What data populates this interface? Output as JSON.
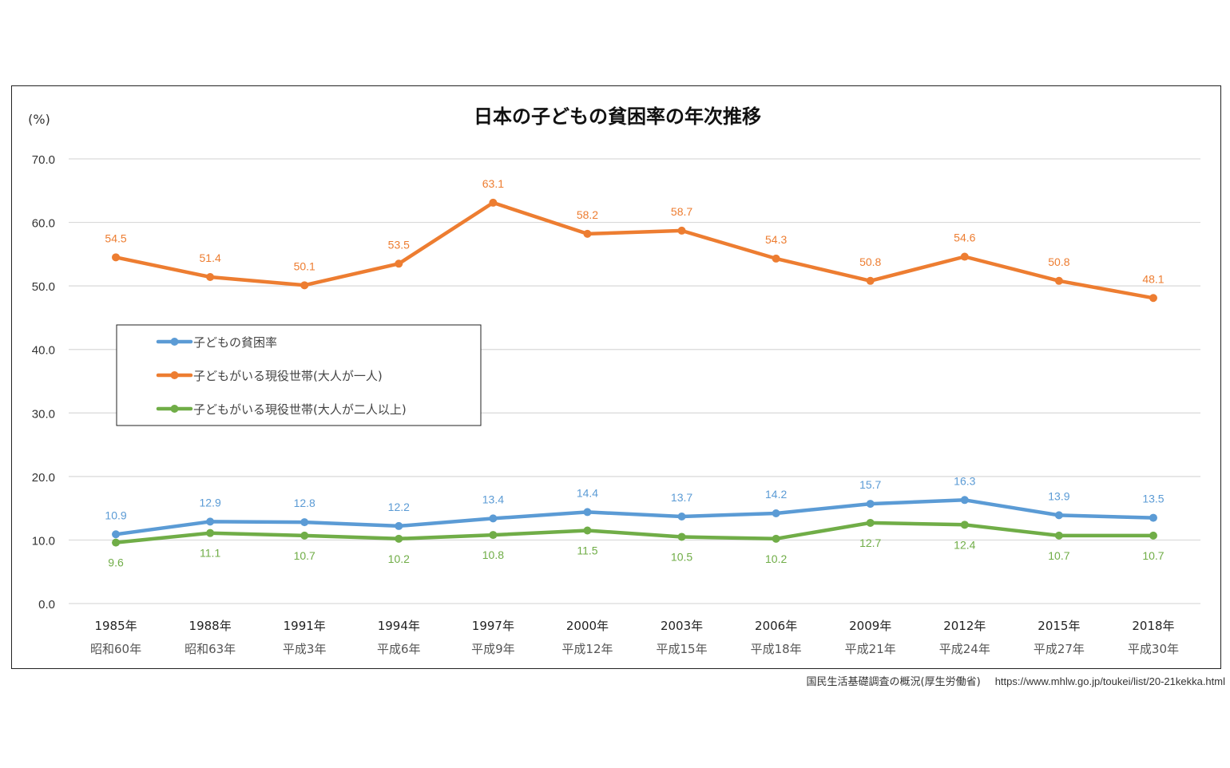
{
  "chart_data": {
    "type": "line",
    "title": "日本の子どもの貧困率の年次推移",
    "ylabel": "(%)",
    "xlabel": "",
    "ylim": [
      0,
      70
    ],
    "yticks": [
      0,
      10,
      20,
      30,
      40,
      50,
      60,
      70
    ],
    "ytick_labels": [
      "0.0",
      "10.0",
      "20.0",
      "30.0",
      "40.0",
      "50.0",
      "60.0",
      "70.0"
    ],
    "grid": true,
    "legend_position": "center-left",
    "categories": [
      "1985年",
      "1988年",
      "1991年",
      "1994年",
      "1997年",
      "2000年",
      "2003年",
      "2006年",
      "2009年",
      "2012年",
      "2015年",
      "2018年"
    ],
    "categories_era": [
      "昭和60年",
      "昭和63年",
      "平成3年",
      "平成6年",
      "平成9年",
      "平成12年",
      "平成15年",
      "平成18年",
      "平成21年",
      "平成24年",
      "平成27年",
      "平成30年"
    ],
    "series": [
      {
        "name": "子どもの貧困率",
        "color": "#5B9BD5",
        "label_position": "above",
        "values": [
          10.9,
          12.9,
          12.8,
          12.2,
          13.4,
          14.4,
          13.7,
          14.2,
          15.7,
          16.3,
          13.9,
          13.5
        ]
      },
      {
        "name": "子どもがいる現役世帯(大人が一人)",
        "color": "#ED7D31",
        "label_position": "above",
        "values": [
          54.5,
          51.4,
          50.1,
          53.5,
          63.1,
          58.2,
          58.7,
          54.3,
          50.8,
          54.6,
          50.8,
          48.1
        ]
      },
      {
        "name": "子どもがいる現役世帯(大人が二人以上)",
        "color": "#70AD47",
        "label_position": "below",
        "values": [
          9.6,
          11.1,
          10.7,
          10.2,
          10.8,
          11.5,
          10.5,
          10.2,
          12.7,
          12.4,
          10.7,
          10.7
        ]
      }
    ]
  },
  "source": {
    "text": "国民生活基礎調査の概況(厚生労働省)",
    "url": "https://www.mhlw.go.jp/toukei/list/20-21kekka.html"
  }
}
